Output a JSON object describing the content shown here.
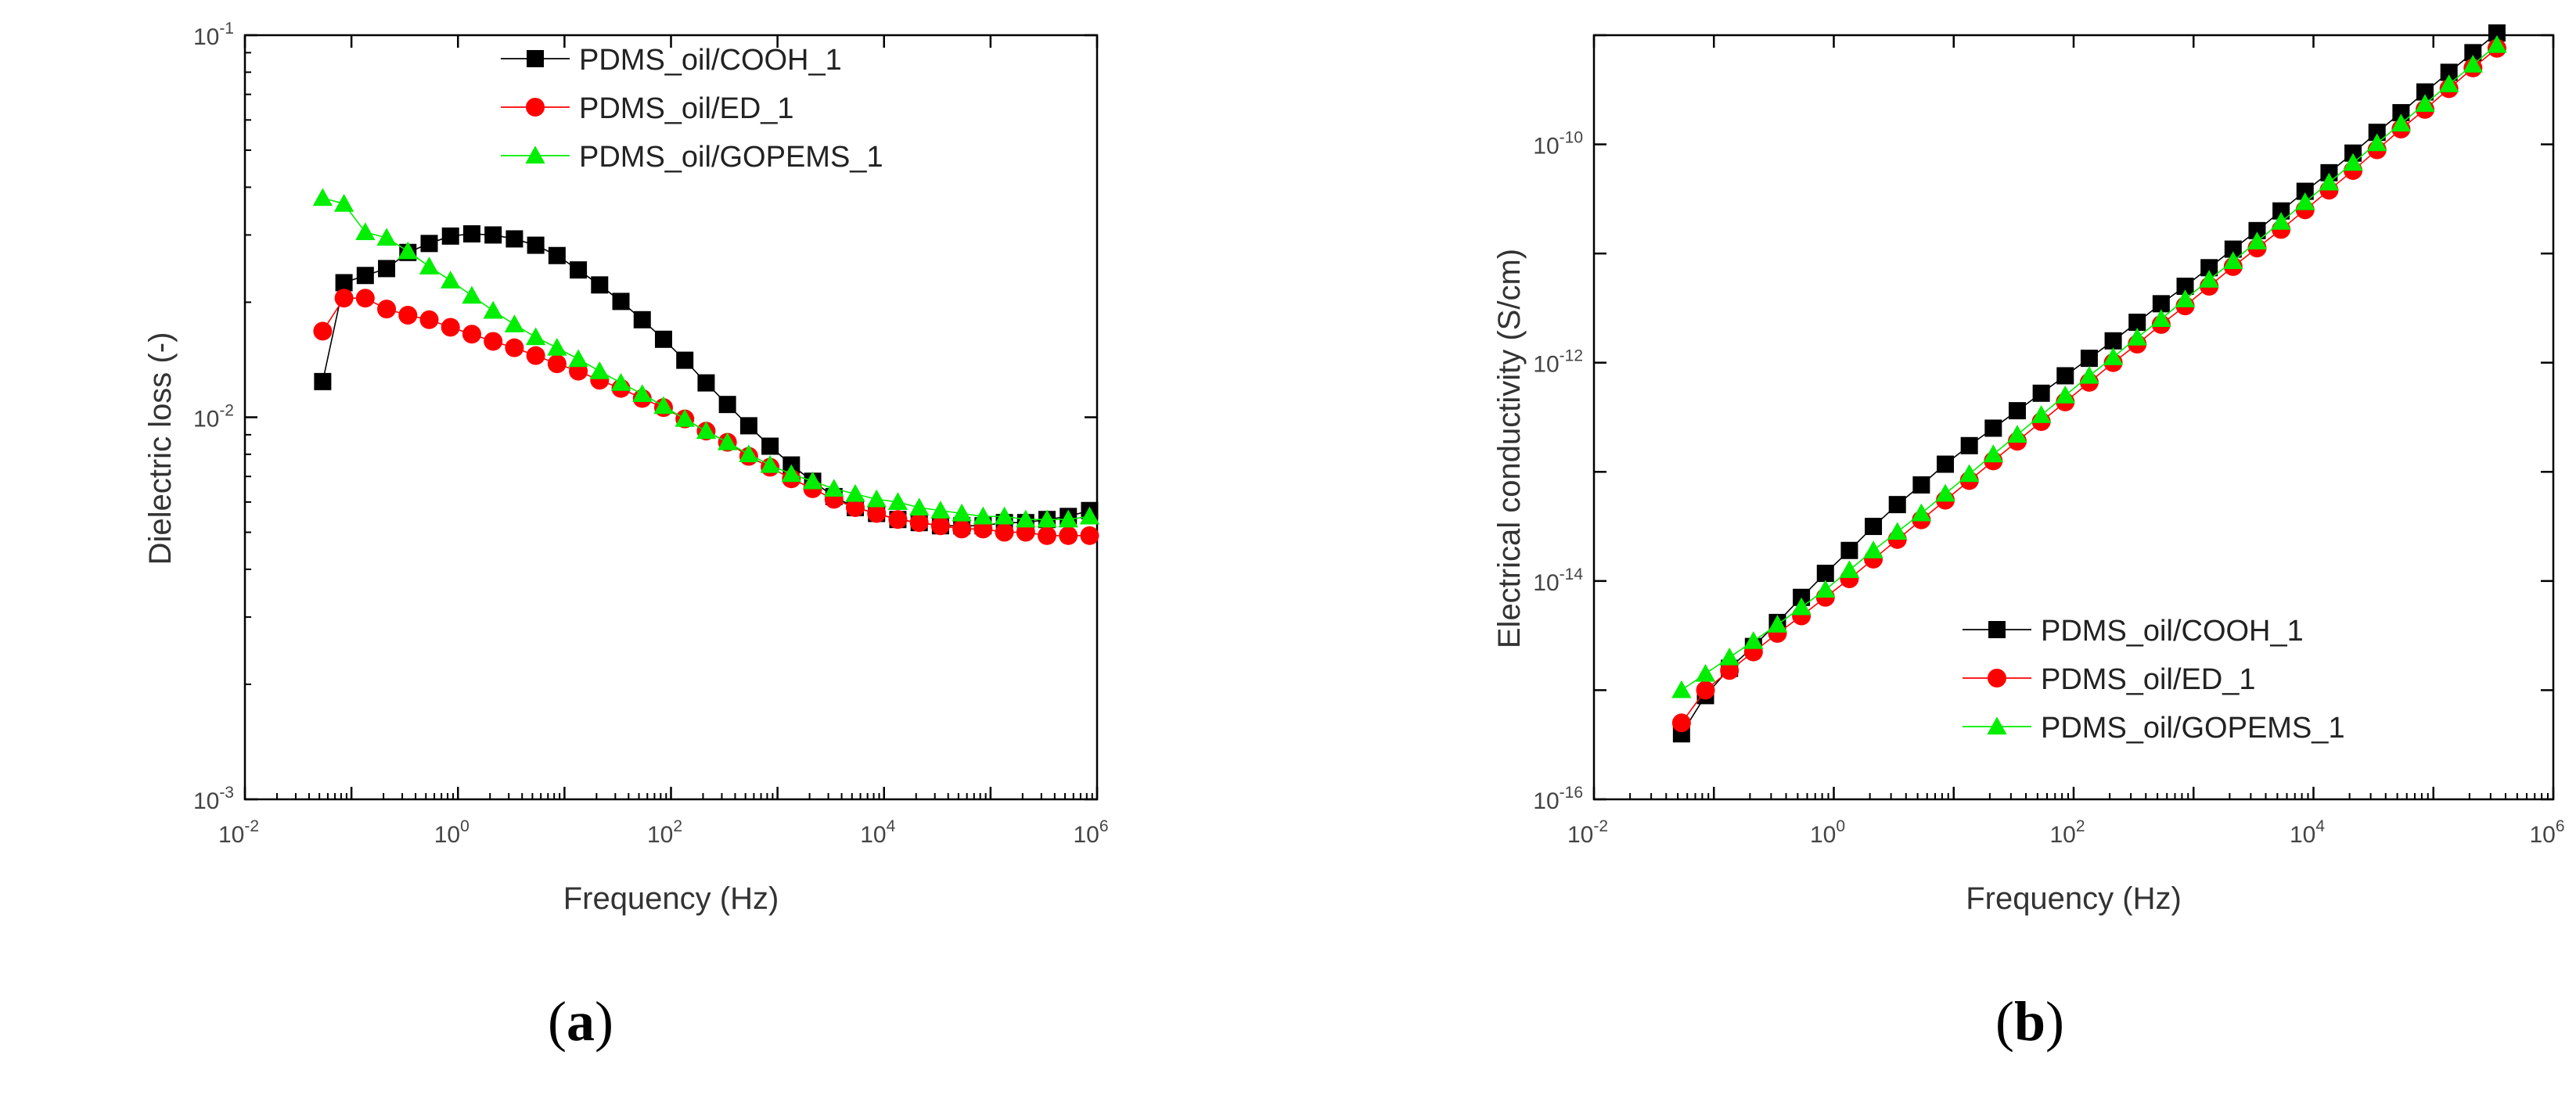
{
  "colors": {
    "PDMS_oil/COOH_1": "#000000",
    "PDMS_oil/ED_1": "#ff0000",
    "PDMS_oil/GOPEMS_1": "#00ee00"
  },
  "chart_data": [
    {
      "panel": "(a)",
      "caption_paren_open": "(",
      "caption_letter": "a",
      "caption_paren_close": ")",
      "type": "scatter",
      "xscale": "log",
      "yscale": "log",
      "xlabel": "Frequency (Hz)",
      "ylabel": "Dielectric loss (-)",
      "xlim": [
        0.01,
        1000000
      ],
      "ylim": [
        0.001,
        0.1
      ],
      "xticks": [
        {
          "value": 0.01,
          "base": "10",
          "exp": "-2"
        },
        {
          "value": 1,
          "base": "10",
          "exp": "0"
        },
        {
          "value": 100,
          "base": "10",
          "exp": "2"
        },
        {
          "value": 10000,
          "base": "10",
          "exp": "4"
        },
        {
          "value": 1000000,
          "base": "10",
          "exp": "6"
        }
      ],
      "yticks": [
        {
          "value": 0.001,
          "base": "10",
          "exp": "-3"
        },
        {
          "value": 0.01,
          "base": "10",
          "exp": "-2"
        },
        {
          "value": 0.1,
          "base": "10",
          "exp": "-1"
        }
      ],
      "legend_position": "top-right",
      "log_x": [
        -1.27,
        -1.07,
        -0.87,
        -0.67,
        -0.47,
        -0.27,
        -0.07,
        0.13,
        0.33,
        0.53,
        0.73,
        0.93,
        1.13,
        1.33,
        1.53,
        1.73,
        1.93,
        2.13,
        2.33,
        2.53,
        2.73,
        2.93,
        3.13,
        3.33,
        3.53,
        3.73,
        3.93,
        4.13,
        4.33,
        4.53,
        4.73,
        4.93,
        5.13,
        5.33,
        5.53,
        5.73,
        5.93
      ],
      "series": [
        {
          "name": "PDMS_oil/COOH_1",
          "marker": "square",
          "values": [
            0.0124,
            0.0225,
            0.0235,
            0.0245,
            0.027,
            0.0285,
            0.0298,
            0.0302,
            0.03,
            0.0293,
            0.0282,
            0.0265,
            0.0243,
            0.0222,
            0.0201,
            0.018,
            0.016,
            0.0141,
            0.0123,
            0.0108,
            0.0095,
            0.0084,
            0.0075,
            0.0068,
            0.0062,
            0.0058,
            0.0056,
            0.0054,
            0.0053,
            0.0052,
            0.0052,
            0.0052,
            0.0053,
            0.0053,
            0.0054,
            0.0055,
            0.0057
          ]
        },
        {
          "name": "PDMS_oil/ED_1",
          "marker": "circle",
          "values": [
            0.0168,
            0.0205,
            0.0205,
            0.0192,
            0.0185,
            0.018,
            0.0172,
            0.0165,
            0.0158,
            0.0152,
            0.0145,
            0.0138,
            0.0132,
            0.0125,
            0.0119,
            0.0112,
            0.0106,
            0.0099,
            0.0092,
            0.0086,
            0.0079,
            0.0074,
            0.0069,
            0.0065,
            0.0061,
            0.0058,
            0.0056,
            0.0054,
            0.0053,
            0.0052,
            0.0051,
            0.0051,
            0.005,
            0.005,
            0.0049,
            0.0049,
            0.0049
          ]
        },
        {
          "name": "PDMS_oil/GOPEMS_1",
          "marker": "triangle",
          "values": [
            0.0375,
            0.0362,
            0.0305,
            0.0295,
            0.0272,
            0.0248,
            0.0228,
            0.0208,
            0.019,
            0.0175,
            0.0162,
            0.0152,
            0.0142,
            0.0132,
            0.0123,
            0.0115,
            0.0107,
            0.0099,
            0.0092,
            0.0086,
            0.008,
            0.0075,
            0.0071,
            0.0068,
            0.0065,
            0.0063,
            0.0061,
            0.006,
            0.0058,
            0.0057,
            0.0056,
            0.0055,
            0.0055,
            0.0054,
            0.0054,
            0.0054,
            0.0055
          ]
        }
      ]
    },
    {
      "panel": "(b)",
      "caption_paren_open": "(",
      "caption_letter": "b",
      "caption_paren_close": ")",
      "type": "scatter",
      "xscale": "log",
      "yscale": "log",
      "xlabel": "Frequency (Hz)",
      "ylabel": "Electrical conductivity (S/cm)",
      "xlim": [
        0.01,
        1000000
      ],
      "ylim": [
        1e-16,
        1e-09
      ],
      "xticks": [
        {
          "value": 0.01,
          "base": "10",
          "exp": "-2"
        },
        {
          "value": 1,
          "base": "10",
          "exp": "0"
        },
        {
          "value": 100,
          "base": "10",
          "exp": "2"
        },
        {
          "value": 10000,
          "base": "10",
          "exp": "4"
        },
        {
          "value": 1000000,
          "base": "10",
          "exp": "6"
        }
      ],
      "yticks": [
        {
          "value": 1e-16,
          "base": "10",
          "exp": "-16"
        },
        {
          "value": 1e-14,
          "base": "10",
          "exp": "-14"
        },
        {
          "value": 1e-12,
          "base": "10",
          "exp": "-12"
        },
        {
          "value": 1e-10,
          "base": "10",
          "exp": "-10"
        }
      ],
      "legend_position": "bottom-right",
      "log_x": [
        -1.27,
        -1.07,
        -0.87,
        -0.67,
        -0.47,
        -0.27,
        -0.07,
        0.13,
        0.33,
        0.53,
        0.73,
        0.93,
        1.13,
        1.33,
        1.53,
        1.73,
        1.93,
        2.13,
        2.33,
        2.53,
        2.73,
        2.93,
        3.13,
        3.33,
        3.53,
        3.73,
        3.93,
        4.13,
        4.33,
        4.53,
        4.73,
        4.93,
        5.13,
        5.33,
        5.53
      ],
      "series": [
        {
          "name": "PDMS_oil/COOH_1",
          "marker": "square",
          "log_values": [
            -15.4,
            -15.05,
            -14.8,
            -14.6,
            -14.38,
            -14.15,
            -13.93,
            -13.72,
            -13.5,
            -13.3,
            -13.12,
            -12.93,
            -12.76,
            -12.6,
            -12.44,
            -12.28,
            -12.12,
            -11.96,
            -11.8,
            -11.63,
            -11.46,
            -11.3,
            -11.13,
            -10.96,
            -10.79,
            -10.61,
            -10.43,
            -10.26,
            -10.08,
            -9.89,
            -9.71,
            -9.52,
            -9.34,
            -9.16,
            -8.98
          ]
        },
        {
          "name": "PDMS_oil/ED_1",
          "marker": "circle",
          "log_values": [
            -15.3,
            -15.0,
            -14.82,
            -14.65,
            -14.48,
            -14.32,
            -14.15,
            -13.98,
            -13.8,
            -13.62,
            -13.44,
            -13.26,
            -13.08,
            -12.9,
            -12.72,
            -12.54,
            -12.36,
            -12.18,
            -12.0,
            -11.83,
            -11.65,
            -11.48,
            -11.3,
            -11.12,
            -10.95,
            -10.78,
            -10.6,
            -10.42,
            -10.24,
            -10.05,
            -9.86,
            -9.68,
            -9.49,
            -9.3,
            -9.12
          ]
        },
        {
          "name": "PDMS_oil/GOPEMS_1",
          "marker": "triangle",
          "log_values": [
            -15.0,
            -14.85,
            -14.7,
            -14.55,
            -14.4,
            -14.24,
            -14.08,
            -13.9,
            -13.72,
            -13.55,
            -13.38,
            -13.2,
            -13.02,
            -12.84,
            -12.66,
            -12.48,
            -12.3,
            -12.12,
            -11.95,
            -11.77,
            -11.6,
            -11.42,
            -11.24,
            -11.07,
            -10.89,
            -10.71,
            -10.53,
            -10.35,
            -10.17,
            -9.99,
            -9.81,
            -9.63,
            -9.45,
            -9.27,
            -9.09
          ]
        }
      ]
    }
  ]
}
